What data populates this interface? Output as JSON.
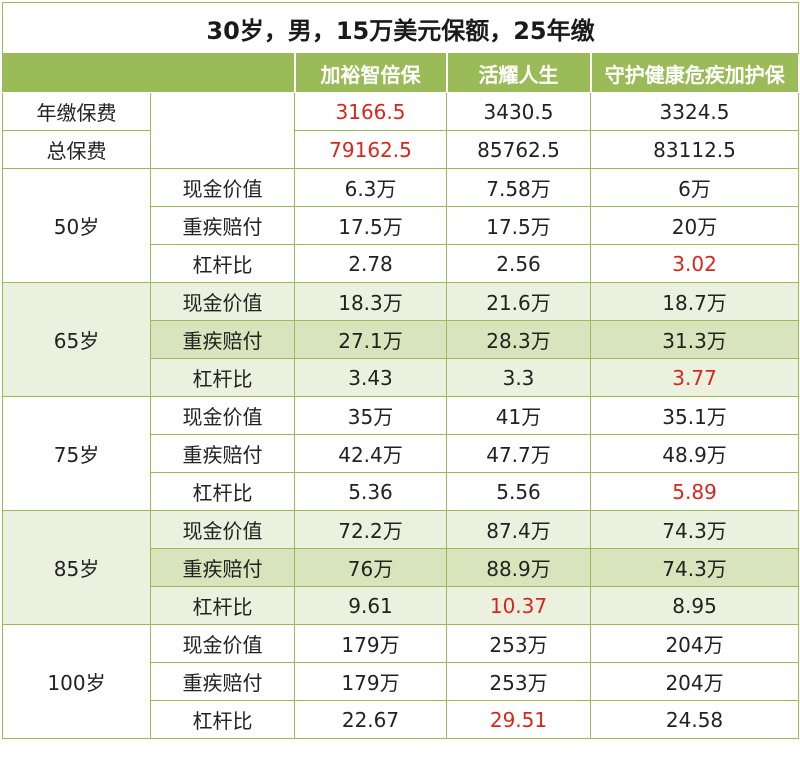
{
  "title": "30岁，男，15万美元保额，25年缴",
  "headers": [
    "加裕智倍保",
    "活耀人生",
    "守护健康危疾加护保"
  ],
  "premiums": [
    {
      "label": "年缴保费",
      "values": [
        "3166.5",
        "3430.5",
        "3324.5"
      ],
      "highlight": [
        0
      ]
    },
    {
      "label": "总保费",
      "values": [
        "79162.5",
        "85762.5",
        "83112.5"
      ],
      "highlight": [
        0
      ]
    }
  ],
  "groups": [
    {
      "age": "50岁",
      "rows": [
        {
          "label": "现金价值",
          "values": [
            "6.3万",
            "7.58万",
            "6万"
          ],
          "highlight": []
        },
        {
          "label": "重疾赔付",
          "values": [
            "17.5万",
            "17.5万",
            "20万"
          ],
          "highlight": []
        },
        {
          "label": "杠杆比",
          "values": [
            "2.78",
            "2.56",
            "3.02"
          ],
          "highlight": [
            2
          ]
        }
      ]
    },
    {
      "age": "65岁",
      "rows": [
        {
          "label": "现金价值",
          "values": [
            "18.3万",
            "21.6万",
            "18.7万"
          ],
          "highlight": []
        },
        {
          "label": "重疾赔付",
          "values": [
            "27.1万",
            "28.3万",
            "31.3万"
          ],
          "highlight": []
        },
        {
          "label": "杠杆比",
          "values": [
            "3.43",
            "3.3",
            "3.77"
          ],
          "highlight": [
            2
          ]
        }
      ]
    },
    {
      "age": "75岁",
      "rows": [
        {
          "label": "现金价值",
          "values": [
            "35万",
            "41万",
            "35.1万"
          ],
          "highlight": []
        },
        {
          "label": "重疾赔付",
          "values": [
            "42.4万",
            "47.7万",
            "48.9万"
          ],
          "highlight": []
        },
        {
          "label": "杠杆比",
          "values": [
            "5.36",
            "5.56",
            "5.89"
          ],
          "highlight": [
            2
          ]
        }
      ]
    },
    {
      "age": "85岁",
      "rows": [
        {
          "label": "现金价值",
          "values": [
            "72.2万",
            "87.4万",
            "74.3万"
          ],
          "highlight": []
        },
        {
          "label": "重疾赔付",
          "values": [
            "76万",
            "88.9万",
            "74.3万"
          ],
          "highlight": []
        },
        {
          "label": "杠杆比",
          "values": [
            "9.61",
            "10.37",
            "8.95"
          ],
          "highlight": [
            1
          ]
        }
      ]
    },
    {
      "age": "100岁",
      "rows": [
        {
          "label": "现金价值",
          "values": [
            "179万",
            "253万",
            "204万"
          ],
          "highlight": []
        },
        {
          "label": "重疾赔付",
          "values": [
            "179万",
            "253万",
            "204万"
          ],
          "highlight": []
        },
        {
          "label": "杠杆比",
          "values": [
            "22.67",
            "29.51",
            "24.58"
          ],
          "highlight": [
            1
          ]
        }
      ]
    }
  ],
  "colors": {
    "accent": "#9bbb59",
    "band_light": "#ebf1de",
    "band_mid": "#d8e4bc",
    "highlight": "#d9261c"
  }
}
